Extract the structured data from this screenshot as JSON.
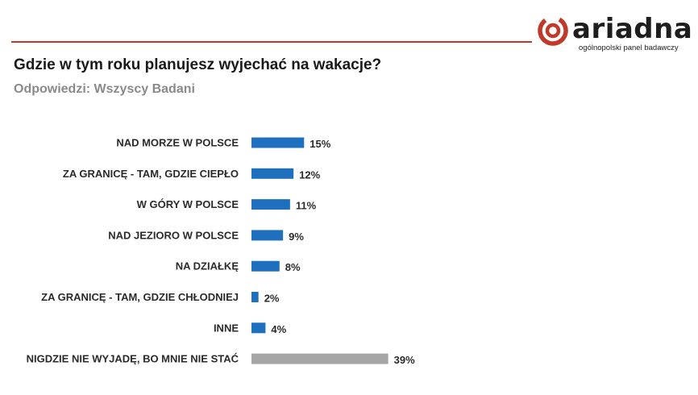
{
  "brand": {
    "name": "ariadna",
    "tagline": "ogólnopolski panel badawczy",
    "accent_color": "#c0392b"
  },
  "colors": {
    "bar_primary": "#1f6fbf",
    "bar_highlight": "#a6a6a6"
  },
  "chart_data": {
    "type": "bar",
    "orientation": "horizontal",
    "title": "Gdzie w tym roku planujesz wyjechać na wakacje?",
    "subtitle": "Odpowiedzi: Wszyscy Badani",
    "categories": [
      "NAD MORZE W POLSCE",
      "ZA GRANICĘ - TAM, GDZIE CIEPŁO",
      "W GÓRY W POLSCE",
      "NAD JEZIORO W POLSCE",
      "NA DZIAŁKĘ",
      "ZA GRANICĘ - TAM, GDZIE CHŁODNIEJ",
      "INNE",
      "NIGDZIE NIE WYJADĘ, BO MNIE NIE STAĆ"
    ],
    "values": [
      15,
      12,
      11,
      9,
      8,
      2,
      4,
      39
    ],
    "value_labels": [
      "15%",
      "12%",
      "11%",
      "9%",
      "8%",
      "2%",
      "4%",
      "39%"
    ],
    "unit": "%",
    "highlight_index": 7,
    "grid": false,
    "legend": "none"
  }
}
